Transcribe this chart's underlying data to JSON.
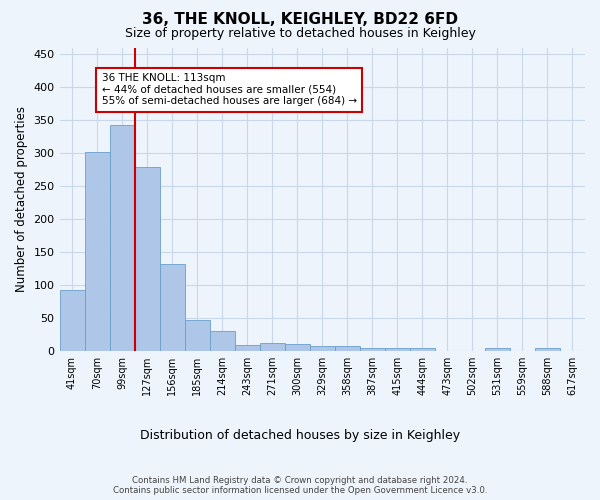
{
  "title": "36, THE KNOLL, KEIGHLEY, BD22 6FD",
  "subtitle": "Size of property relative to detached houses in Keighley",
  "xlabel": "Distribution of detached houses by size in Keighley",
  "ylabel": "Number of detached properties",
  "footer_line1": "Contains HM Land Registry data © Crown copyright and database right 2024.",
  "footer_line2": "Contains public sector information licensed under the Open Government Licence v3.0.",
  "bin_labels": [
    "41sqm",
    "70sqm",
    "99sqm",
    "127sqm",
    "156sqm",
    "185sqm",
    "214sqm",
    "243sqm",
    "271sqm",
    "300sqm",
    "329sqm",
    "358sqm",
    "387sqm",
    "415sqm",
    "444sqm",
    "473sqm",
    "502sqm",
    "531sqm",
    "559sqm",
    "588sqm",
    "617sqm"
  ],
  "bar_heights": [
    92,
    302,
    342,
    278,
    131,
    47,
    30,
    9,
    12,
    10,
    7,
    7,
    4,
    4,
    4,
    0,
    0,
    4,
    0,
    4,
    0
  ],
  "bar_color": "#aec6e8",
  "bar_edge_color": "#6a9ec8",
  "grid_color": "#c8d8e8",
  "background_color": "#eef4fb",
  "property_line_color": "#cc0000",
  "annotation_line1": "36 THE KNOLL: 113sqm",
  "annotation_line2": "← 44% of detached houses are smaller (554)",
  "annotation_line3": "55% of semi-detached houses are larger (684) →",
  "annotation_box_color": "#ffffff",
  "annotation_box_edge": "#cc0000",
  "ylim": [
    0,
    460
  ],
  "yticks": [
    0,
    50,
    100,
    150,
    200,
    250,
    300,
    350,
    400,
    450
  ]
}
